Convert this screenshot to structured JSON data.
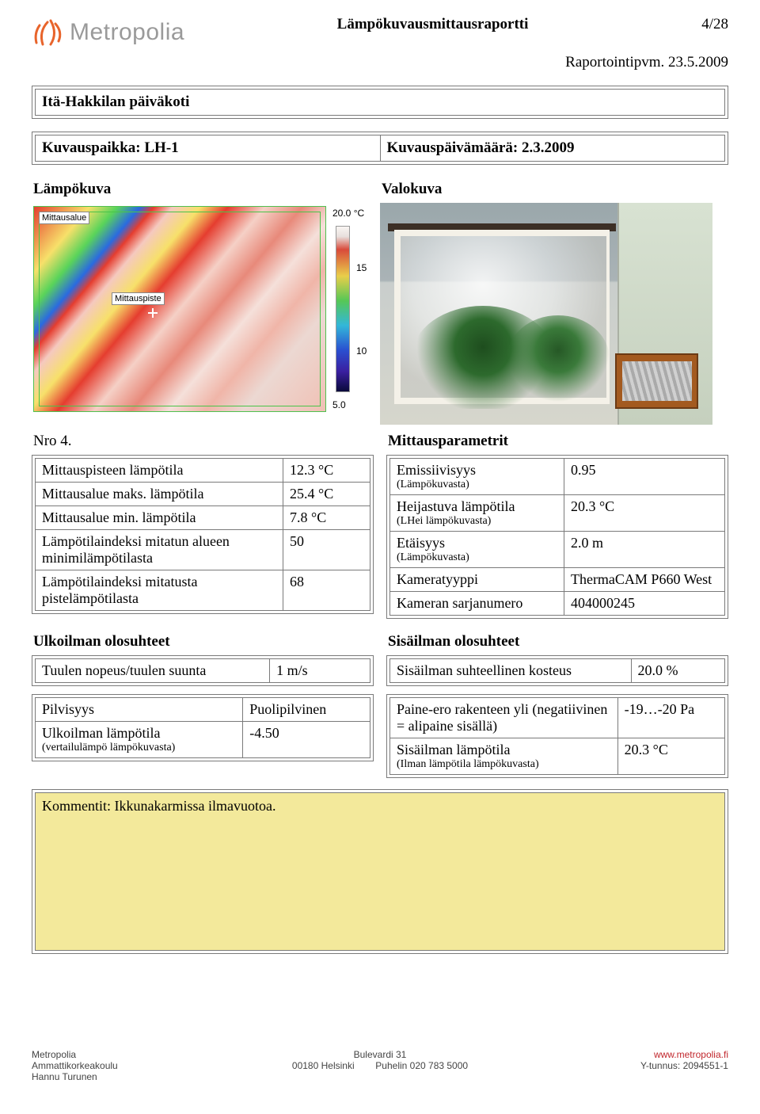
{
  "header": {
    "logo_text": "Metropolia",
    "title": "Lämpökuvausmittausraportti",
    "page": "4/28",
    "report_date_label": "Raportointipvm. 23.5.2009",
    "logo_color": "#e8642b"
  },
  "site_box": {
    "text": "Itä-Hakkilan päiväkoti"
  },
  "location_row": {
    "left_label": "Kuvauspaikka: LH-1",
    "right_label": "Kuvauspäivämäärä: 2.3.2009"
  },
  "image_row": {
    "left_heading": "Lämpökuva",
    "right_heading": "Valokuva",
    "thermal": {
      "area_label": "Mittausalue",
      "point_label": "Mittauspiste",
      "scale_top": "20.0 °C",
      "scale_t2": "15",
      "scale_t3": "10",
      "scale_bottom": "5.0"
    }
  },
  "nro": "Nro 4.",
  "left_table": [
    [
      "Mittauspisteen lämpötila",
      "12.3 °C"
    ],
    [
      "Mittausalue maks. lämpötila",
      "25.4 °C"
    ],
    [
      "Mittausalue min. lämpötila",
      "7.8 °C"
    ],
    [
      "Lämpötilaindeksi mitatun alueen minimilämpötilasta",
      "50"
    ],
    [
      "Lämpötilaindeksi mitatusta pistelämpötilasta",
      "68"
    ]
  ],
  "right_heading": "Mittausparametrit",
  "right_table": [
    [
      "Emissiivisyys\n(Lämpökuvasta)",
      "0.95"
    ],
    [
      "Heijastuva lämpötila\n(LHei lämpökuvasta)",
      "20.3 °C"
    ],
    [
      "Etäisyys\n(Lämpökuvasta)",
      "2.0 m"
    ],
    [
      "Kameratyyppi",
      "ThermaCAM P660 West"
    ],
    [
      "Kameran sarjanumero",
      "404000245"
    ]
  ],
  "outdoor_heading": "Ulkoilman olosuhteet",
  "indoor_heading": "Sisäilman olosuhteet",
  "outdoor1": [
    "Tuulen nopeus/tuulen suunta",
    "1 m/s"
  ],
  "indoor1": [
    "Sisäilman suhteellinen kosteus",
    "20.0 %"
  ],
  "outdoor2a": [
    "Pilvisyys",
    "Puolipilvinen"
  ],
  "outdoor2b": [
    "Ulkoilman lämpötila\n(vertailulämpö lämpökuvasta)",
    "-4.50"
  ],
  "indoor2a": [
    "Paine-ero rakenteen yli (negatiivinen = alipaine sisällä)",
    "-19…-20 Pa"
  ],
  "indoor2b": [
    "Sisäilman lämpötila\n(Ilman lämpötila lämpökuvasta)",
    "20.3 °C"
  ],
  "comments": "Kommentit: Ikkunakarmissa ilmavuotoa.",
  "footer": {
    "l1": "Metropolia",
    "l2": "Ammattikorkeakoulu",
    "l3": "Hannu Turunen",
    "c1": "Bulevardi 31",
    "c2": "00180 Helsinki",
    "c3": "Puhelin 020 783 5000",
    "r1": "www.metropolia.fi",
    "r2": "Y-tunnus: 2094551-1"
  }
}
